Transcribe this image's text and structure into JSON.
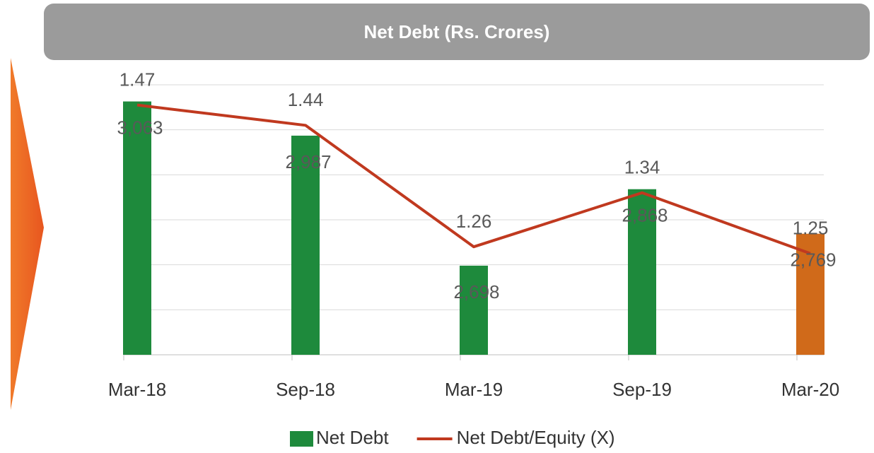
{
  "chart_data": {
    "type": "bar_line",
    "title": "Net Debt (Rs. Crores)",
    "categories": [
      "Mar-18",
      "Sep-18",
      "Mar-19",
      "Sep-19",
      "Mar-20"
    ],
    "series": [
      {
        "name": "Net Debt",
        "type": "bar",
        "color": "#1e8a3c",
        "colors": [
          "#1e8a3c",
          "#1e8a3c",
          "#1e8a3c",
          "#1e8a3c",
          "#d06a1a"
        ],
        "values": [
          3063,
          2987,
          2698,
          2868,
          2769
        ],
        "value_labels": [
          "3,063",
          "2,987",
          "2,698",
          "2,868",
          "2,769"
        ]
      },
      {
        "name": "Net Debt/Equity (X)",
        "type": "line",
        "axis": "y2",
        "color": "#c0391f",
        "values": [
          1.47,
          1.44,
          1.26,
          1.34,
          1.25
        ]
      }
    ],
    "ylim": [
      2500,
      3100
    ],
    "yticks": [
      2500,
      2600,
      2700,
      2800,
      2900,
      3000,
      3100
    ],
    "y2lim": [
      1.1,
      1.5
    ],
    "grid": true,
    "legend": "bottom"
  }
}
